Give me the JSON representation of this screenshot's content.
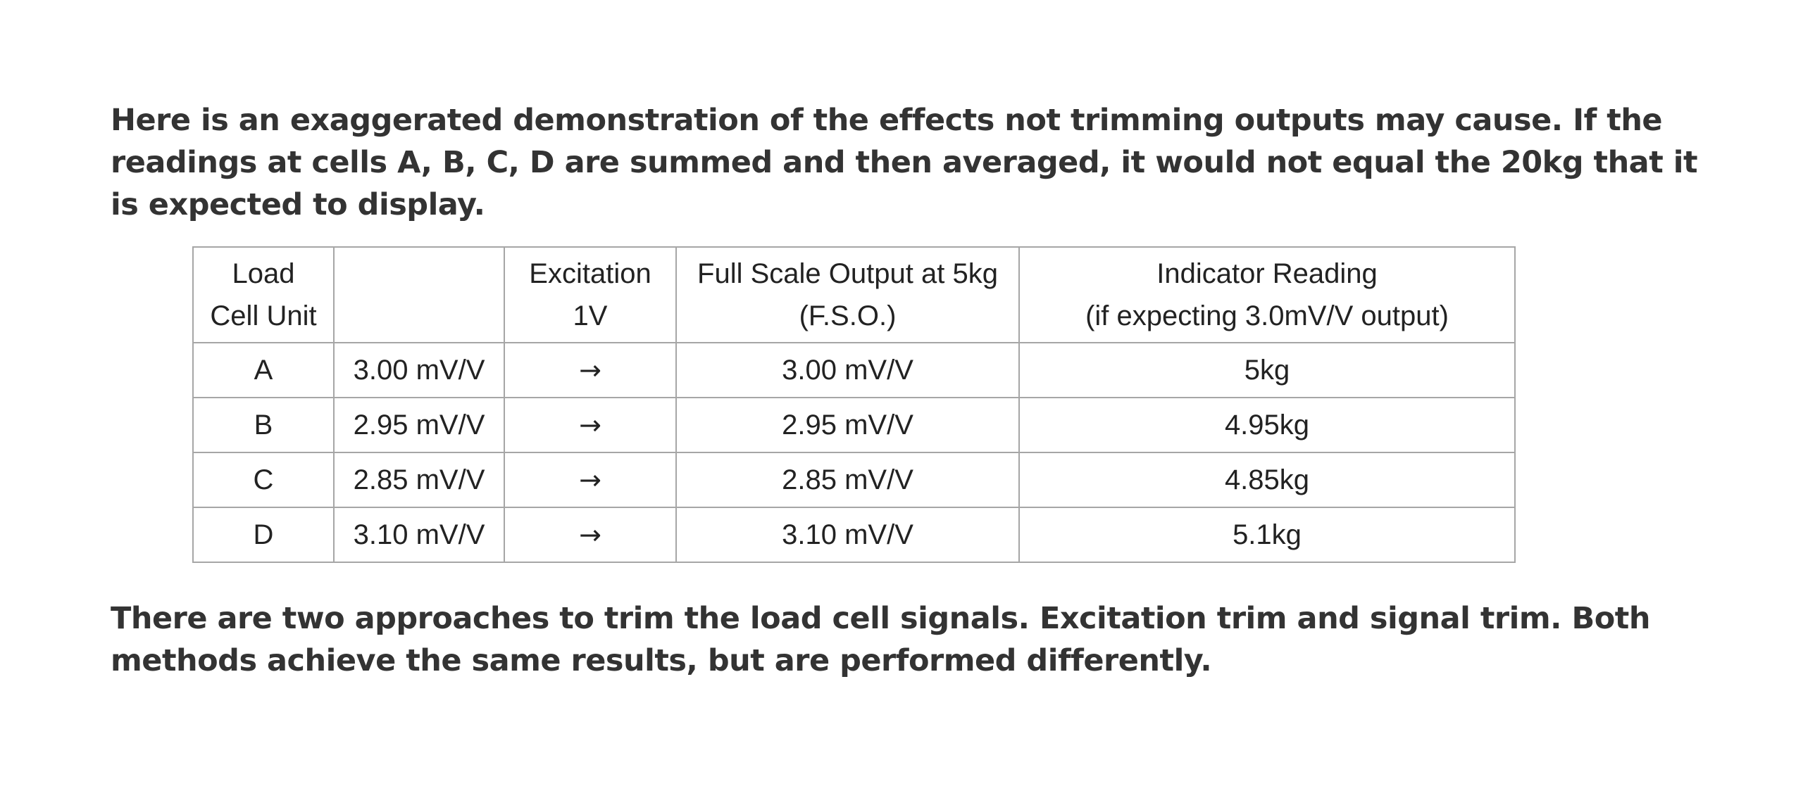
{
  "intro_text": "Here is an exaggerated demonstration of the effects not trimming outputs may cause. If the readings at cells A, B, C, D are summed and then averaged, it would not equal the 20kg that it is expected to display.",
  "table": {
    "headers": [
      {
        "line1": "Load",
        "line2": "Cell Unit"
      },
      {
        "line1": "",
        "line2": ""
      },
      {
        "line1": "Excitation",
        "line2": "1V"
      },
      {
        "line1": "Full Scale Output at 5kg",
        "line2": "(F.S.O.)"
      },
      {
        "line1": "Indicator Reading",
        "line2": "(if expecting 3.0mV/V output)"
      }
    ],
    "rows": [
      {
        "unit": "A",
        "sensitivity": "3.00 mV/V",
        "arrow": "→",
        "fso": "3.00 mV/V",
        "reading": "5kg"
      },
      {
        "unit": "B",
        "sensitivity": "2.95 mV/V",
        "arrow": "→",
        "fso": "2.95 mV/V",
        "reading": "4.95kg"
      },
      {
        "unit": "C",
        "sensitivity": "2.85 mV/V",
        "arrow": "→",
        "fso": "2.85 mV/V",
        "reading": "4.85kg"
      },
      {
        "unit": "D",
        "sensitivity": "3.10 mV/V",
        "arrow": "→",
        "fso": "3.10 mV/V",
        "reading": "5.1kg"
      }
    ]
  },
  "outro_text": "There are two approaches to trim the load cell signals. Excitation trim and signal trim. Both methods achieve the same results, but are performed differently."
}
